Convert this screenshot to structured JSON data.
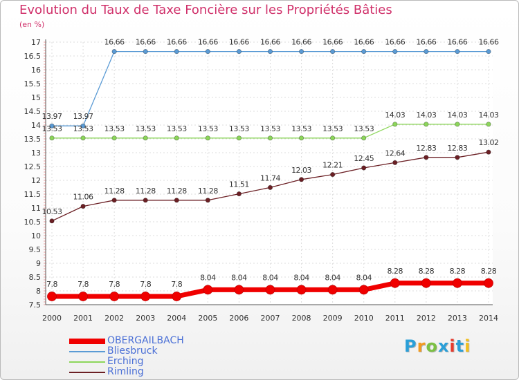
{
  "header": {
    "title": "Evolution du Taux de Taxe Foncière sur les Propriétés Bâties",
    "unit": "(en %)"
  },
  "logo": {
    "text": "Proxiti",
    "colors": [
      "#2a9fd8",
      "#f29a1e",
      "#7bc043",
      "#2a9fd8",
      "#e63b2e",
      "#2a9fd8",
      "#f2c01e"
    ]
  },
  "chart_data": {
    "type": "line",
    "x": [
      2000,
      2001,
      2002,
      2003,
      2004,
      2005,
      2006,
      2007,
      2008,
      2009,
      2010,
      2011,
      2012,
      2013,
      2014
    ],
    "ylim": [
      7.5,
      17
    ],
    "y_ticks": [
      "7.5",
      "8",
      "8.5",
      "9",
      "9.5",
      "10",
      "10.5",
      "11",
      "11.5",
      "12",
      "12.5",
      "13",
      "13.5",
      "14",
      "14.5",
      "15",
      "15.5",
      "16",
      "16.5",
      "17"
    ],
    "grid": true,
    "legend_position": "bottom-left",
    "series": [
      {
        "name": "OBERGAILBACH",
        "color": "#f00000",
        "values": [
          7.8,
          7.8,
          7.8,
          7.8,
          7.8,
          8.04,
          8.04,
          8.04,
          8.04,
          8.04,
          8.04,
          8.28,
          8.28,
          8.28,
          8.28
        ],
        "labels": [
          "7.8",
          "7.8",
          "7.8",
          "7.8",
          "7.8",
          "8.04",
          "8.04",
          "8.04",
          "8.04",
          "8.04",
          "8.04",
          "8.28",
          "8.28",
          "8.28",
          "8.28"
        ]
      },
      {
        "name": "Bliesbruck",
        "color": "#5b9bd5",
        "values": [
          13.97,
          13.97,
          16.66,
          16.66,
          16.66,
          16.66,
          16.66,
          16.66,
          16.66,
          16.66,
          16.66,
          16.66,
          16.66,
          16.66,
          16.66
        ],
        "labels": [
          "13.97",
          "13.97",
          "16.66",
          "16.66",
          "16.66",
          "16.66",
          "16.66",
          "16.66",
          "16.66",
          "16.66",
          "16.66",
          "16.66",
          "16.66",
          "16.66",
          "16.66"
        ]
      },
      {
        "name": "Erching",
        "color": "#8cd65a",
        "values": [
          13.53,
          13.53,
          13.53,
          13.53,
          13.53,
          13.53,
          13.53,
          13.53,
          13.53,
          13.53,
          13.53,
          14.03,
          14.03,
          14.03,
          14.03
        ],
        "labels": [
          "13.53",
          "13.53",
          "13.53",
          "13.53",
          "13.53",
          "13.53",
          "13.53",
          "13.53",
          "13.53",
          "13.53",
          "13.53",
          "14.03",
          "14.03",
          "14.03",
          "14.03"
        ]
      },
      {
        "name": "Rimling",
        "color": "#6b1f24",
        "values": [
          10.53,
          11.06,
          11.28,
          11.28,
          11.28,
          11.28,
          11.51,
          11.74,
          12.03,
          12.21,
          12.45,
          12.64,
          12.83,
          12.83,
          13.02
        ],
        "labels": [
          "10.53",
          "11.06",
          "11.28",
          "11.28",
          "11.28",
          "11.28",
          "11.51",
          "11.74",
          "12.03",
          "12.21",
          "12.45",
          "12.64",
          "12.83",
          "12.83",
          "13.02"
        ]
      }
    ]
  }
}
